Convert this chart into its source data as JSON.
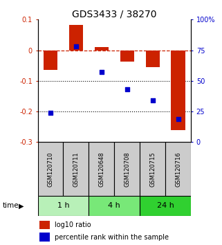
{
  "title": "GDS3433 / 38270",
  "samples": [
    "GSM120710",
    "GSM120711",
    "GSM120648",
    "GSM120708",
    "GSM120715",
    "GSM120716"
  ],
  "log10_ratio": [
    -0.065,
    0.082,
    0.01,
    -0.038,
    -0.055,
    -0.26
  ],
  "percentile_rank": [
    24,
    78,
    57,
    43,
    34,
    19
  ],
  "groups": [
    {
      "label": "1 h",
      "samples": [
        0,
        1
      ],
      "color": "#b8f0b8"
    },
    {
      "label": "4 h",
      "samples": [
        2,
        3
      ],
      "color": "#78e878"
    },
    {
      "label": "24 h",
      "samples": [
        4,
        5
      ],
      "color": "#30d030"
    }
  ],
  "ylim_left": [
    -0.3,
    0.1
  ],
  "ylim_right": [
    0,
    100
  ],
  "y_ticks_left": [
    0.1,
    0.0,
    -0.1,
    -0.2,
    -0.3
  ],
  "y_ticks_right": [
    100,
    75,
    50,
    25,
    0
  ],
  "bar_color": "#cc2200",
  "dot_color": "#0000cc",
  "dot_size": 18,
  "dotted_lines": [
    -0.1,
    -0.2
  ],
  "bar_width": 0.55,
  "legend_labels": [
    "log10 ratio",
    "percentile rank within the sample"
  ],
  "title_fontsize": 10,
  "tick_fontsize": 7,
  "sample_fontsize": 6,
  "group_fontsize": 8,
  "legend_fontsize": 7
}
